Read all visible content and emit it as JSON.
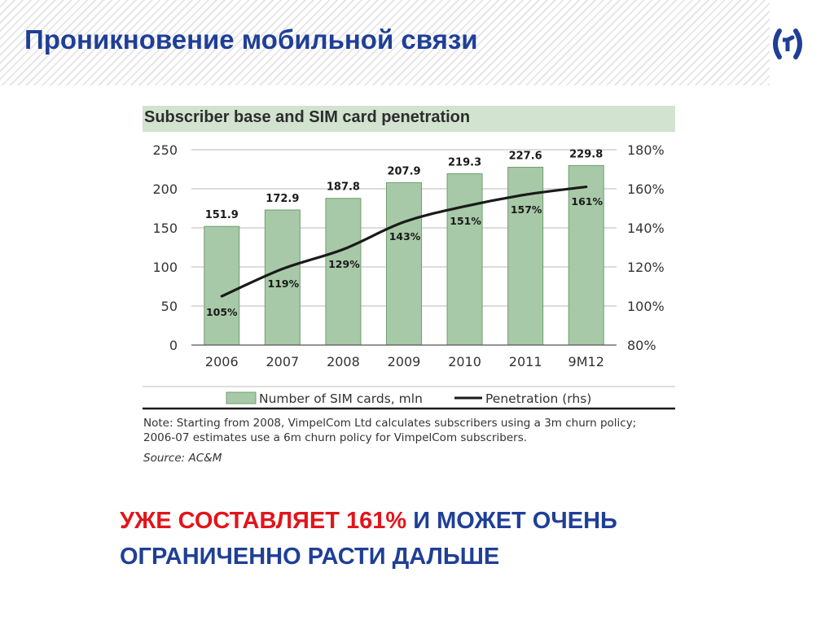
{
  "slide": {
    "title": "Проникновение мобильной связи",
    "callout": {
      "red_part": "УЖЕ СОСТАВЛЯЕТ 161%",
      "blue_part_1": " И МОЖЕТ ОЧЕНЬ",
      "blue_part_2": "ОГРАНИЧЕННО РАСТИ ДАЛЬШЕ"
    },
    "logo": {
      "icon": "beeline-bracket-logo-icon",
      "color": "#1f3f97"
    }
  },
  "colors": {
    "title_blue": "#1f3f97",
    "accent_red": "#e3141b",
    "bar_fill": "#a7c9a7",
    "bar_stroke": "#6f9f6f",
    "title_band": "#d2e3d0",
    "line": "#1a1a1a"
  },
  "note": {
    "line1": "Note: Starting from 2008, VimpelCom Ltd calculates subscribers using a 3m churn policy;",
    "line2": "2006-07 estimates use a 6m churn policy for VimpelCom subscribers.",
    "source": "Source: AC&M"
  },
  "chart_data": {
    "type": "bar",
    "title": "Subscriber base and SIM card penetration",
    "categories": [
      "2006",
      "2007",
      "2008",
      "2009",
      "2010",
      "2011",
      "9M12"
    ],
    "series": [
      {
        "name": "Number of SIM cards, mln",
        "type": "bar",
        "axis": "left",
        "values": [
          151.9,
          172.9,
          187.8,
          207.9,
          219.3,
          227.6,
          229.8
        ],
        "labels": [
          "151.9",
          "172.9",
          "187.8",
          "207.9",
          "219.3",
          "227.6",
          "229.8"
        ]
      },
      {
        "name": "Penetration (rhs)",
        "type": "line",
        "axis": "right",
        "values": [
          105,
          119,
          129,
          143,
          151,
          157,
          161
        ],
        "labels": [
          "105%",
          "119%",
          "129%",
          "143%",
          "151%",
          "157%",
          "161%"
        ]
      }
    ],
    "y_left": {
      "min": 0,
      "max": 250,
      "ticks": [
        "0",
        "50",
        "100",
        "150",
        "200",
        "250"
      ]
    },
    "y_right": {
      "min": 80,
      "max": 180,
      "ticks": [
        "80%",
        "100%",
        "120%",
        "140%",
        "160%",
        "180%"
      ]
    },
    "grid": true,
    "legend": "bottom"
  }
}
